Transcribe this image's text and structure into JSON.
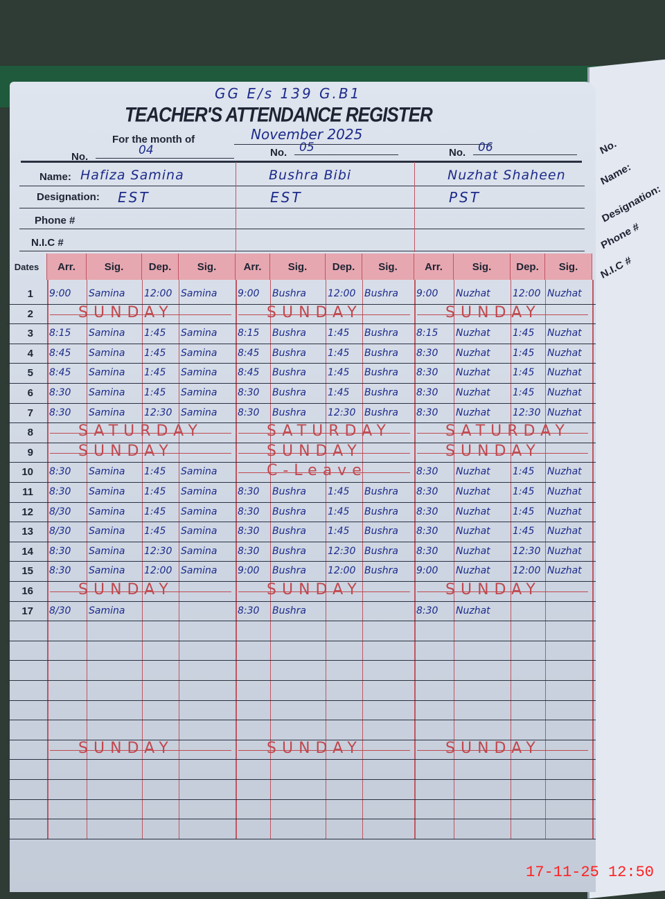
{
  "register": {
    "school_code": "GG E/s 139 G.B1",
    "title": "TEACHER'S ATTENDANCE REGISTER",
    "month_label": "For the month of",
    "month_value": "November 2025",
    "no_label": "No.",
    "name_label": "Name:",
    "designation_label": "Designation:",
    "phone_label": "Phone #",
    "nic_label": "N.I.C #",
    "dates_header": "Dates",
    "column_headers": [
      "Arr.",
      "Sig.",
      "Dep.",
      "Sig."
    ]
  },
  "teachers": [
    {
      "no": "04",
      "name": "Hafiza Samina",
      "designation": "EST"
    },
    {
      "no": "05",
      "name": "Bushra Bibi",
      "designation": "EST"
    },
    {
      "no": "06",
      "name": "Nuzhat Shaheen",
      "designation": "PST"
    }
  ],
  "rows": [
    {
      "date": "1",
      "cells": [
        [
          "9:00",
          "Samina",
          "12:00",
          "Samina"
        ],
        [
          "9:00",
          "Bushra",
          "12:00",
          "Bushra"
        ],
        [
          "9:00",
          "Nuzhat",
          "12:00",
          "Nuzhat"
        ]
      ]
    },
    {
      "date": "2",
      "notes": [
        "SUNDAY",
        "SUNDAY",
        "SUNDAY"
      ]
    },
    {
      "date": "3",
      "cells": [
        [
          "8:15",
          "Samina",
          "1:45",
          "Samina"
        ],
        [
          "8:15",
          "Bushra",
          "1:45",
          "Bushra"
        ],
        [
          "8:15",
          "Nuzhat",
          "1:45",
          "Nuzhat"
        ]
      ]
    },
    {
      "date": "4",
      "cells": [
        [
          "8:45",
          "Samina",
          "1:45",
          "Samina"
        ],
        [
          "8:45",
          "Bushra",
          "1:45",
          "Bushra"
        ],
        [
          "8:30",
          "Nuzhat",
          "1:45",
          "Nuzhat"
        ]
      ]
    },
    {
      "date": "5",
      "cells": [
        [
          "8:45",
          "Samina",
          "1:45",
          "Samina"
        ],
        [
          "8:45",
          "Bushra",
          "1:45",
          "Bushra"
        ],
        [
          "8:30",
          "Nuzhat",
          "1:45",
          "Nuzhat"
        ]
      ]
    },
    {
      "date": "6",
      "cells": [
        [
          "8:30",
          "Samina",
          "1:45",
          "Samina"
        ],
        [
          "8:30",
          "Bushra",
          "1:45",
          "Bushra"
        ],
        [
          "8:30",
          "Nuzhat",
          "1:45",
          "Nuzhat"
        ]
      ]
    },
    {
      "date": "7",
      "cells": [
        [
          "8:30",
          "Samina",
          "12:30",
          "Samina"
        ],
        [
          "8:30",
          "Bushra",
          "12:30",
          "Bushra"
        ],
        [
          "8:30",
          "Nuzhat",
          "12:30",
          "Nuzhat"
        ]
      ]
    },
    {
      "date": "8",
      "notes": [
        "SATURDAY",
        "SATURDAY",
        "SATURDAY"
      ]
    },
    {
      "date": "9",
      "notes": [
        "SUNDAY",
        "SUNDAY",
        "SUNDAY"
      ]
    },
    {
      "date": "10",
      "cells": [
        [
          "8:30",
          "Samina",
          "1:45",
          "Samina"
        ],
        null,
        [
          "8:30",
          "Nuzhat",
          "1:45",
          "Nuzhat"
        ]
      ],
      "notes": [
        null,
        "C-Leave",
        null
      ]
    },
    {
      "date": "11",
      "cells": [
        [
          "8:30",
          "Samina",
          "1:45",
          "Samina"
        ],
        [
          "8:30",
          "Bushra",
          "1:45",
          "Bushra"
        ],
        [
          "8:30",
          "Nuzhat",
          "1:45",
          "Nuzhat"
        ]
      ]
    },
    {
      "date": "12",
      "cells": [
        [
          "8/30",
          "Samina",
          "1:45",
          "Samina"
        ],
        [
          "8:30",
          "Bushra",
          "1:45",
          "Bushra"
        ],
        [
          "8:30",
          "Nuzhat",
          "1:45",
          "Nuzhat"
        ]
      ]
    },
    {
      "date": "13",
      "cells": [
        [
          "8/30",
          "Samina",
          "1:45",
          "Samina"
        ],
        [
          "8:30",
          "Bushra",
          "1:45",
          "Bushra"
        ],
        [
          "8:30",
          "Nuzhat",
          "1:45",
          "Nuzhat"
        ]
      ]
    },
    {
      "date": "14",
      "cells": [
        [
          "8:30",
          "Samina",
          "12:30",
          "Samina"
        ],
        [
          "8:30",
          "Bushra",
          "12:30",
          "Bushra"
        ],
        [
          "8:30",
          "Nuzhat",
          "12:30",
          "Nuzhat"
        ]
      ]
    },
    {
      "date": "15",
      "cells": [
        [
          "8:30",
          "Samina",
          "12:00",
          "Samina"
        ],
        [
          "9:00",
          "Bushra",
          "12:00",
          "Bushra"
        ],
        [
          "9:00",
          "Nuzhat",
          "12:00",
          "Nuzhat"
        ]
      ]
    },
    {
      "date": "16",
      "notes": [
        "SUNDAY",
        "SUNDAY",
        "SUNDAY"
      ]
    },
    {
      "date": "17",
      "cells": [
        [
          "8/30",
          "Samina",
          "",
          ""
        ],
        [
          "8:30",
          "Bushra",
          "",
          ""
        ],
        [
          "8:30",
          "Nuzhat",
          "",
          ""
        ]
      ]
    },
    {
      "date": "",
      "cells": []
    },
    {
      "date": "",
      "cells": []
    },
    {
      "date": "",
      "cells": []
    },
    {
      "date": "",
      "cells": []
    },
    {
      "date": "",
      "cells": []
    },
    {
      "date": "",
      "cells": []
    },
    {
      "date": "",
      "notes": [
        "SUNDAY",
        "SUNDAY",
        "SUNDAY"
      ]
    },
    {
      "date": "",
      "cells": []
    },
    {
      "date": "",
      "cells": []
    },
    {
      "date": "",
      "cells": []
    },
    {
      "date": "",
      "cells": []
    }
  ],
  "camera_timestamp": "17-11-25  12:50",
  "colors": {
    "ink": "#1c2a8a",
    "red_ink": "#c0484e",
    "header_pink": "#e7a7b0",
    "paper": "#dfe5ee"
  }
}
